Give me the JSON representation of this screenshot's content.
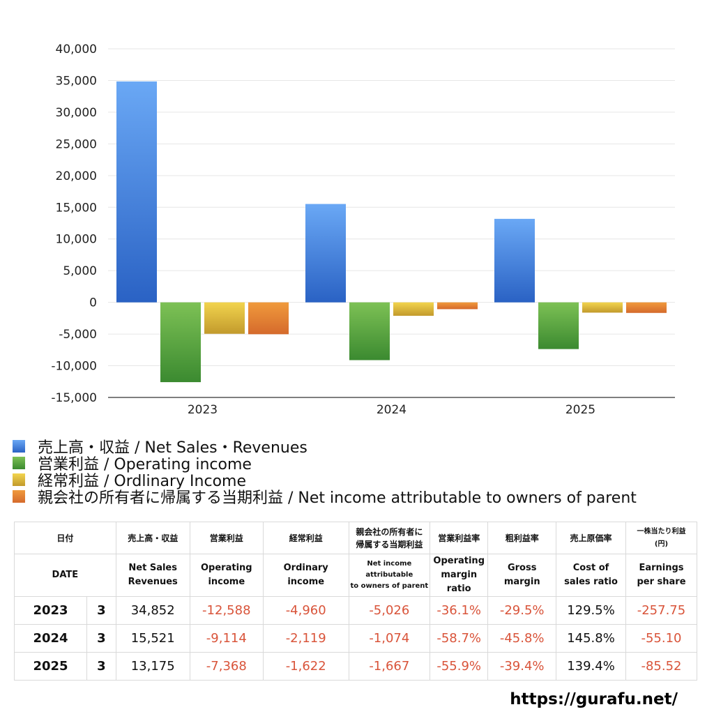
{
  "chart_data": {
    "type": "bar",
    "categories": [
      "2023",
      "2024",
      "2025"
    ],
    "series": [
      {
        "name": "売上高・収益 / Net Sales・Revenues",
        "values": [
          34852,
          15521,
          13175
        ],
        "color_top": "#6aa8f5",
        "color_bottom": "#2a62c4"
      },
      {
        "name": "営業利益 / Operating income",
        "values": [
          -12588,
          -9114,
          -7368
        ],
        "color_top": "#7dc155",
        "color_bottom": "#3b8a30"
      },
      {
        "name": "経常利益 / Ordlinary Income",
        "values": [
          -4960,
          -2119,
          -1622
        ],
        "color_top": "#f2d44e",
        "color_bottom": "#c29a2c"
      },
      {
        "name": "親会社の所有者に帰属する当期利益 / Net income attributable to owners of parent",
        "values": [
          -5026,
          -1074,
          -1667
        ],
        "color_top": "#f09a3c",
        "color_bottom": "#d56a2c"
      }
    ],
    "ylim": [
      -15000,
      40000
    ],
    "yticks": [
      40000,
      35000,
      30000,
      25000,
      20000,
      15000,
      10000,
      5000,
      0,
      -5000,
      -10000,
      -15000
    ],
    "ytick_labels": [
      "40,000",
      "35,000",
      "30,000",
      "25,000",
      "20,000",
      "15,000",
      "10,000",
      "5,000",
      "0",
      "-5,000",
      "-10,000",
      "-15,000"
    ],
    "grid": true,
    "legend_position": "bottom"
  },
  "table": {
    "headers_jp": [
      "日付",
      "売上高・収益",
      "営業利益",
      "経常利益",
      "親会社の所有者に\n帰属する当期利益",
      "営業利益率",
      "粗利益率",
      "売上原価率",
      "一株当たり利益\n(円)"
    ],
    "headers_en": [
      "DATE",
      "Net Sales\nRevenues",
      "Operating\nincome",
      "Ordinary\nincome",
      "Net income attributable\nto owners of parent",
      "Operating\nmargin\nratio",
      "Gross\nmargin",
      "Cost of\nsales ratio",
      "Earnings\nper share"
    ],
    "rows": [
      {
        "year": "2023",
        "month": "3",
        "values": [
          "34,852",
          "-12,588",
          "-4,960",
          "-5,026",
          "-36.1%",
          "-29.5%",
          "129.5%",
          "-257.75"
        ]
      },
      {
        "year": "2024",
        "month": "3",
        "values": [
          "15,521",
          "-9,114",
          "-2,119",
          "-1,074",
          "-58.7%",
          "-45.8%",
          "145.8%",
          "-55.10"
        ]
      },
      {
        "year": "2025",
        "month": "3",
        "values": [
          "13,175",
          "-7,368",
          "-1,622",
          "-1,667",
          "-55.9%",
          "-39.4%",
          "139.4%",
          "-85.52"
        ]
      }
    ]
  },
  "footer": {
    "url": "https://gurafu.net/"
  }
}
